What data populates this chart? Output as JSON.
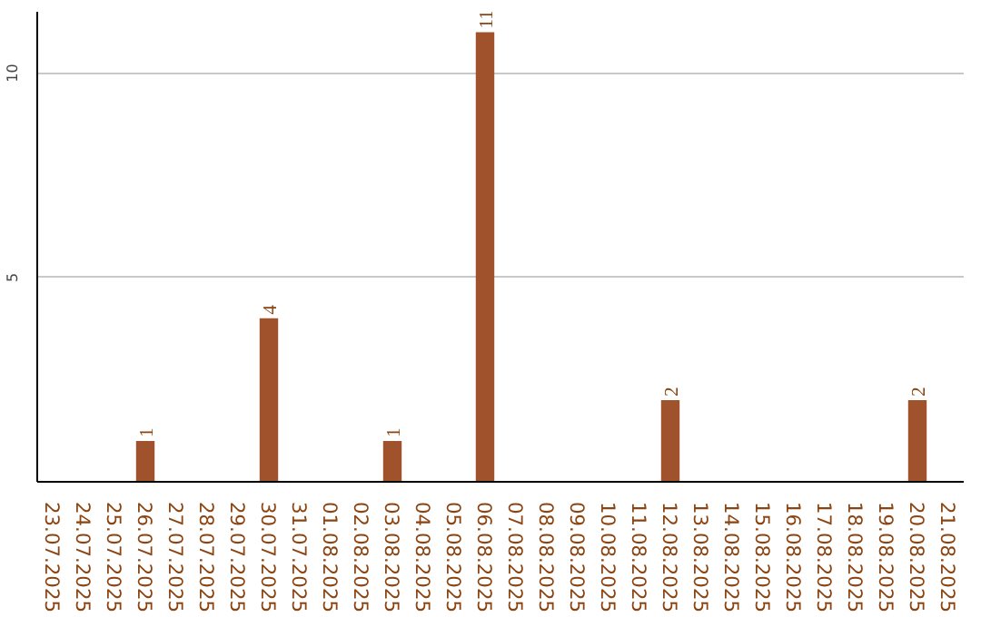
{
  "chart_data": {
    "type": "bar",
    "categories": [
      "23.07.2025",
      "24.07.2025",
      "25.07.2025",
      "26.07.2025",
      "27.07.2025",
      "28.07.2025",
      "29.07.2025",
      "30.07.2025",
      "31.07.2025",
      "01.08.2025",
      "02.08.2025",
      "03.08.2025",
      "04.08.2025",
      "05.08.2025",
      "06.08.2025",
      "07.08.2025",
      "08.08.2025",
      "09.08.2025",
      "10.08.2025",
      "11.08.2025",
      "12.08.2025",
      "13.08.2025",
      "14.08.2025",
      "15.08.2025",
      "16.08.2025",
      "17.08.2025",
      "18.08.2025",
      "19.08.2025",
      "20.08.2025",
      "21.08.2025"
    ],
    "values": [
      0,
      0,
      0,
      1,
      0,
      0,
      0,
      4,
      0,
      0,
      0,
      1,
      0,
      0,
      11,
      0,
      0,
      0,
      0,
      0,
      2,
      0,
      0,
      0,
      0,
      0,
      0,
      0,
      2,
      0
    ],
    "value_labels": [
      null,
      null,
      null,
      "1",
      null,
      null,
      null,
      "4",
      null,
      null,
      null,
      "1",
      null,
      null,
      "11",
      null,
      null,
      null,
      null,
      null,
      "2",
      null,
      null,
      null,
      null,
      null,
      null,
      null,
      "2",
      null
    ],
    "color": "#a0522d",
    "ylim": [
      0,
      11.5
    ],
    "yticks": [
      5,
      10
    ],
    "grid": "y"
  }
}
